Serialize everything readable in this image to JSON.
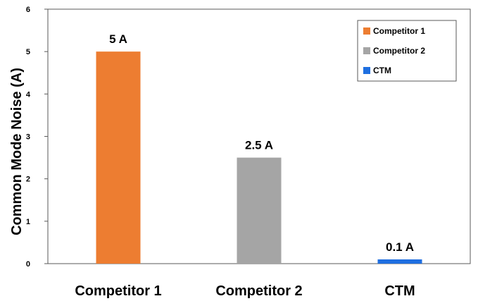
{
  "chart_data": {
    "type": "bar",
    "categories": [
      "Competitor 1",
      "Competitor 2",
      "CTM"
    ],
    "values": [
      5,
      2.5,
      0.1
    ],
    "data_labels": [
      "5 A",
      "2.5 A",
      "0.1 A"
    ],
    "colors": [
      "#ED7D31",
      "#A5A5A5",
      "#1F6FE0"
    ],
    "title": "",
    "xlabel": "",
    "ylabel": "Common Mode Noise (A)",
    "ylim": [
      0,
      6
    ],
    "yticks": [
      "0",
      "1",
      "2",
      "3",
      "4",
      "5",
      "6"
    ],
    "grid": false,
    "legend": {
      "position": "top-right",
      "entries": [
        "Competitor 1",
        "Competitor 2",
        "CTM"
      ]
    }
  }
}
